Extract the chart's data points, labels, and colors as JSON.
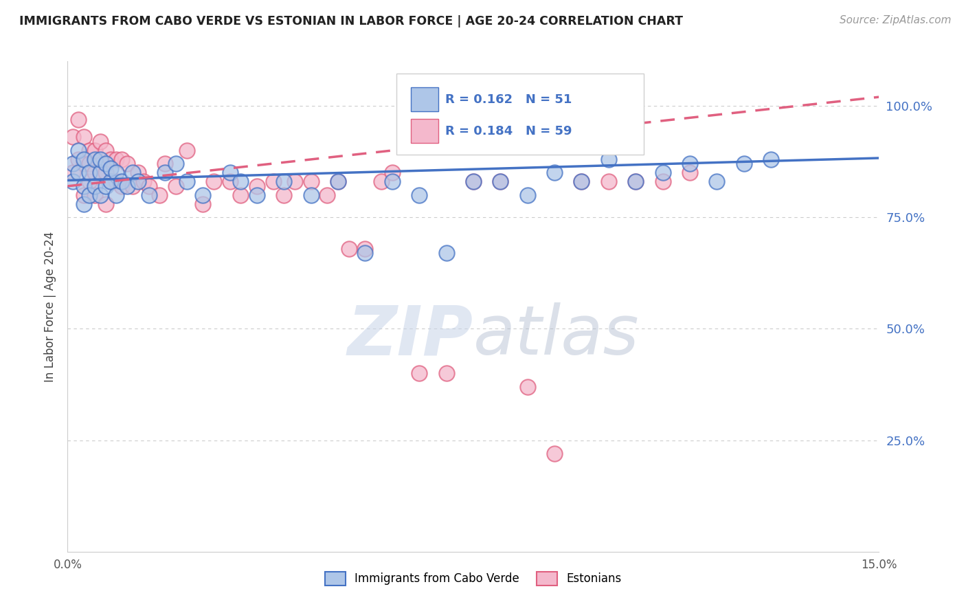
{
  "title": "IMMIGRANTS FROM CABO VERDE VS ESTONIAN IN LABOR FORCE | AGE 20-24 CORRELATION CHART",
  "source": "Source: ZipAtlas.com",
  "ylabel": "In Labor Force | Age 20-24",
  "ytick_vals": [
    0.25,
    0.5,
    0.75,
    1.0
  ],
  "xlim": [
    0.0,
    0.15
  ],
  "ylim": [
    0.0,
    1.1
  ],
  "blue_color": "#aec6e8",
  "pink_color": "#f4b8cc",
  "line_blue": "#4472c4",
  "line_pink": "#e06080",
  "blue_trend": [
    0.833,
    0.883
  ],
  "pink_trend": [
    0.82,
    1.02
  ],
  "cabo_verde_x": [
    0.001,
    0.001,
    0.002,
    0.002,
    0.003,
    0.003,
    0.003,
    0.004,
    0.004,
    0.005,
    0.005,
    0.006,
    0.006,
    0.006,
    0.007,
    0.007,
    0.008,
    0.008,
    0.009,
    0.009,
    0.01,
    0.011,
    0.012,
    0.013,
    0.015,
    0.018,
    0.02,
    0.022,
    0.025,
    0.03,
    0.032,
    0.035,
    0.04,
    0.045,
    0.05,
    0.055,
    0.06,
    0.065,
    0.07,
    0.075,
    0.08,
    0.085,
    0.09,
    0.095,
    0.1,
    0.105,
    0.11,
    0.115,
    0.12,
    0.125,
    0.13
  ],
  "cabo_verde_y": [
    0.87,
    0.83,
    0.9,
    0.85,
    0.88,
    0.82,
    0.78,
    0.85,
    0.8,
    0.88,
    0.82,
    0.85,
    0.88,
    0.8,
    0.82,
    0.87,
    0.83,
    0.86,
    0.8,
    0.85,
    0.83,
    0.82,
    0.85,
    0.83,
    0.8,
    0.85,
    0.87,
    0.83,
    0.8,
    0.85,
    0.83,
    0.8,
    0.83,
    0.8,
    0.83,
    0.67,
    0.83,
    0.8,
    0.67,
    0.83,
    0.83,
    0.8,
    0.85,
    0.83,
    0.88,
    0.83,
    0.85,
    0.87,
    0.83,
    0.87,
    0.88
  ],
  "estonian_x": [
    0.001,
    0.001,
    0.002,
    0.002,
    0.003,
    0.003,
    0.003,
    0.004,
    0.004,
    0.004,
    0.005,
    0.005,
    0.005,
    0.006,
    0.006,
    0.007,
    0.007,
    0.007,
    0.008,
    0.008,
    0.009,
    0.009,
    0.01,
    0.01,
    0.011,
    0.012,
    0.013,
    0.014,
    0.015,
    0.017,
    0.018,
    0.02,
    0.022,
    0.025,
    0.027,
    0.03,
    0.032,
    0.035,
    0.038,
    0.04,
    0.042,
    0.045,
    0.048,
    0.05,
    0.052,
    0.055,
    0.058,
    0.06,
    0.065,
    0.07,
    0.075,
    0.08,
    0.085,
    0.09,
    0.095,
    0.1,
    0.105,
    0.11,
    0.115
  ],
  "estonian_y": [
    0.93,
    0.85,
    0.97,
    0.88,
    0.93,
    0.87,
    0.8,
    0.9,
    0.87,
    0.83,
    0.9,
    0.85,
    0.8,
    0.92,
    0.85,
    0.9,
    0.85,
    0.78,
    0.88,
    0.83,
    0.88,
    0.83,
    0.88,
    0.82,
    0.87,
    0.82,
    0.85,
    0.83,
    0.82,
    0.8,
    0.87,
    0.82,
    0.9,
    0.78,
    0.83,
    0.83,
    0.8,
    0.82,
    0.83,
    0.8,
    0.83,
    0.83,
    0.8,
    0.83,
    0.68,
    0.68,
    0.83,
    0.85,
    0.4,
    0.4,
    0.83,
    0.83,
    0.37,
    0.22,
    0.83,
    0.83,
    0.83,
    0.83,
    0.85
  ]
}
